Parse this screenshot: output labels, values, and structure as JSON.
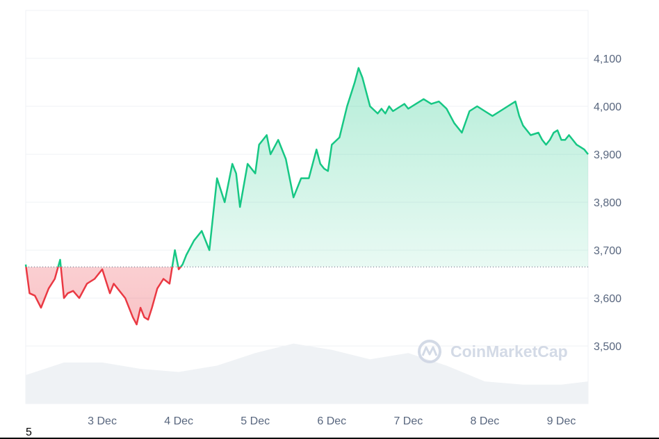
{
  "chart_data": {
    "type": "line",
    "baseline": 3665,
    "y_axis": {
      "ticks": [
        "3,500",
        "3,600",
        "3,700",
        "3,800",
        "3,900",
        "4,000",
        "4,100"
      ],
      "tick_values": [
        3500,
        3600,
        3700,
        3800,
        3900,
        4000,
        4100
      ],
      "ylim": [
        3380,
        4200
      ],
      "position": "right"
    },
    "x_axis": {
      "ticks": [
        "3 Dec",
        "4 Dec",
        "5 Dec",
        "6 Dec",
        "7 Dec",
        "8 Dec",
        "9 Dec"
      ],
      "tick_values": [
        1,
        2,
        3,
        4,
        5,
        6,
        7
      ],
      "xlim": [
        0,
        7.35
      ]
    },
    "grid": "horizontal",
    "colors": {
      "up": "#16c784",
      "down": "#ea3943"
    },
    "price": {
      "x": [
        0,
        0.05,
        0.12,
        0.2,
        0.3,
        0.38,
        0.45,
        0.5,
        0.55,
        0.62,
        0.7,
        0.8,
        0.9,
        1.0,
        1.1,
        1.15,
        1.2,
        1.3,
        1.4,
        1.45,
        1.5,
        1.55,
        1.6,
        1.65,
        1.72,
        1.8,
        1.88,
        1.95,
        2.0,
        2.05,
        2.1,
        2.2,
        2.3,
        2.4,
        2.5,
        2.6,
        2.65,
        2.7,
        2.75,
        2.8,
        2.9,
        3.0,
        3.05,
        3.1,
        3.15,
        3.2,
        3.3,
        3.4,
        3.5,
        3.6,
        3.7,
        3.8,
        3.85,
        3.9,
        3.95,
        4.0,
        4.1,
        4.2,
        4.3,
        4.35,
        4.4,
        4.5,
        4.6,
        4.65,
        4.7,
        4.75,
        4.8,
        4.85,
        4.9,
        4.95,
        5.0,
        5.05,
        5.1,
        5.2,
        5.3,
        5.4,
        5.5,
        5.6,
        5.7,
        5.8,
        5.9,
        6.0,
        6.1,
        6.2,
        6.3,
        6.4,
        6.45,
        6.5,
        6.6,
        6.7,
        6.75,
        6.8,
        6.85,
        6.9,
        6.95,
        7.0,
        7.05,
        7.1,
        7.15,
        7.2,
        7.25,
        7.3,
        7.35
      ],
      "y": [
        3670,
        3610,
        3605,
        3580,
        3620,
        3640,
        3680,
        3600,
        3610,
        3615,
        3600,
        3630,
        3640,
        3660,
        3610,
        3630,
        3620,
        3600,
        3560,
        3545,
        3580,
        3560,
        3555,
        3580,
        3620,
        3640,
        3630,
        3700,
        3660,
        3670,
        3690,
        3720,
        3740,
        3700,
        3850,
        3800,
        3840,
        3880,
        3860,
        3790,
        3880,
        3860,
        3920,
        3930,
        3940,
        3900,
        3930,
        3890,
        3810,
        3850,
        3850,
        3910,
        3880,
        3870,
        3865,
        3920,
        3935,
        4000,
        4050,
        4080,
        4060,
        4000,
        3985,
        3995,
        3985,
        4000,
        3990,
        3995,
        4000,
        4005,
        3995,
        4000,
        4005,
        4015,
        4005,
        4010,
        3995,
        3965,
        3945,
        3990,
        4000,
        3990,
        3980,
        3990,
        4000,
        4010,
        3980,
        3960,
        3940,
        3945,
        3930,
        3920,
        3930,
        3945,
        3950,
        3930,
        3930,
        3940,
        3930,
        3920,
        3915,
        3910,
        3900
      ]
    },
    "volume": {
      "x": [
        0,
        0.5,
        1.0,
        1.5,
        2.0,
        2.5,
        3.0,
        3.5,
        4.0,
        4.5,
        5.0,
        5.5,
        6.0,
        6.5,
        7.0,
        7.35
      ],
      "y": [
        0.45,
        0.65,
        0.65,
        0.55,
        0.5,
        0.6,
        0.8,
        0.95,
        0.85,
        0.7,
        0.8,
        0.6,
        0.35,
        0.3,
        0.3,
        0.35
      ]
    }
  },
  "watermark": {
    "text": "CoinMarketCap"
  },
  "corner_label": "5"
}
